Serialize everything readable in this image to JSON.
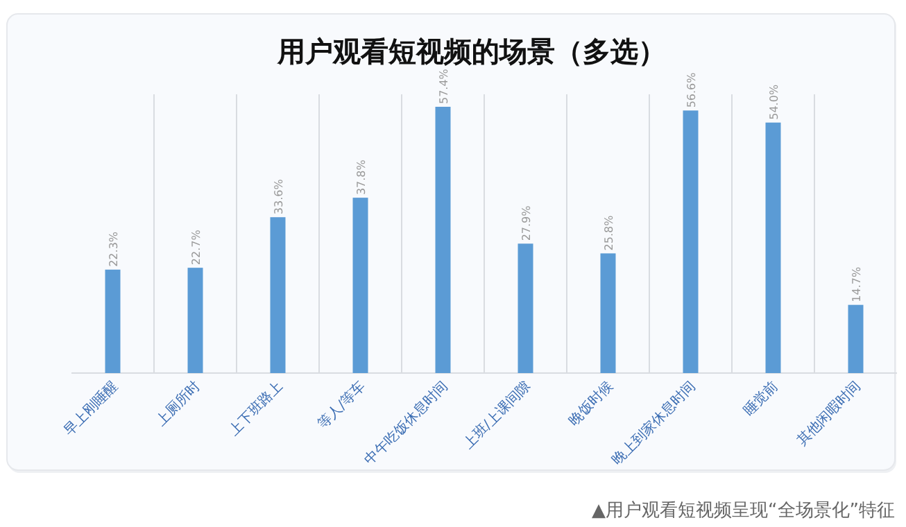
{
  "chart_data": {
    "type": "bar",
    "title": "用户观看短视频的场景（多选）",
    "categories": [
      "早上刚睡醒",
      "上厕所时",
      "上下班路上",
      "等人/等车",
      "中午吃饭休息时间",
      "上班/上课间隙",
      "晚饭时候",
      "晚上到家休息时间",
      "睡觉前",
      "其他闲暇时间"
    ],
    "values": [
      22.3,
      22.7,
      33.6,
      37.8,
      57.4,
      27.9,
      25.8,
      56.6,
      54.0,
      14.7
    ],
    "value_labels": [
      "22.3%",
      "22.7%",
      "33.6%",
      "37.8%",
      "57.4%",
      "27.9%",
      "25.8%",
      "56.6%",
      "54.0%",
      "14.7%"
    ],
    "color": "#5b9bd5",
    "grid": "x",
    "annotations": [
      "▲用户观看短视频呈现“全场景化”特征"
    ]
  }
}
